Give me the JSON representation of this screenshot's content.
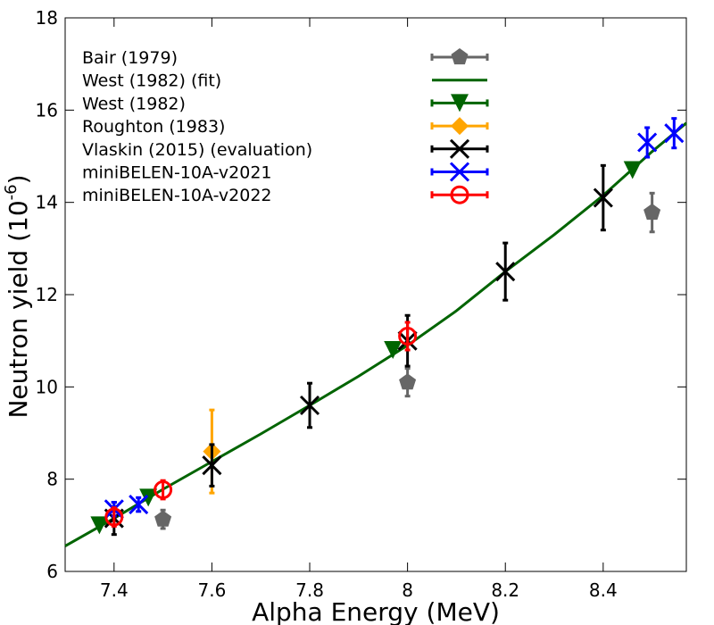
{
  "chart_data": {
    "type": "scatter",
    "xlabel": "Alpha Energy (MeV)",
    "ylabel": "Neutron yield (10",
    "ylabel_exp": "-6",
    "ylabel_close": ")",
    "xlim": [
      7.3,
      8.57
    ],
    "ylim": [
      6,
      18
    ],
    "xticks": [
      7.4,
      7.6,
      7.8,
      8,
      8.2,
      8.4
    ],
    "xtick_labels": [
      "7.4",
      "7.6",
      "7.8",
      "8",
      "8.2",
      "8.4"
    ],
    "yticks": [
      6,
      8,
      10,
      12,
      14,
      16,
      18
    ],
    "ytick_labels": [
      "6",
      "8",
      "10",
      "12",
      "14",
      "16",
      "18"
    ],
    "legend_position": "top-left",
    "series": [
      {
        "name": "Bair (1979)",
        "marker": "pentagon",
        "color": "#666666",
        "points": [
          {
            "x": 7.5,
            "y": 7.13,
            "err": 0.2
          },
          {
            "x": 8.0,
            "y": 10.1,
            "err": 0.3
          },
          {
            "x": 8.5,
            "y": 13.78,
            "err": 0.42
          }
        ]
      },
      {
        "name": "West (1982) (fit)",
        "marker": "line",
        "color": "#006400",
        "x": [
          7.3,
          7.35,
          7.4,
          7.5,
          7.6,
          7.7,
          7.8,
          7.9,
          8.0,
          8.1,
          8.2,
          8.3,
          8.4,
          8.5,
          8.57
        ],
        "y": [
          6.55,
          6.85,
          7.15,
          7.78,
          8.38,
          8.98,
          9.6,
          10.23,
          10.9,
          11.65,
          12.5,
          13.3,
          14.15,
          15.1,
          15.72
        ]
      },
      {
        "name": "West (1982)",
        "marker": "triangle-down",
        "color": "#006400",
        "points": [
          {
            "x": 7.37,
            "y": 7.0
          },
          {
            "x": 7.47,
            "y": 7.6
          },
          {
            "x": 7.97,
            "y": 10.8
          },
          {
            "x": 8.46,
            "y": 14.7
          }
        ]
      },
      {
        "name": "Roughton (1983)",
        "marker": "diamond",
        "color": "#FFA500",
        "points": [
          {
            "x": 7.6,
            "y": 8.6,
            "err": 0.9
          }
        ]
      },
      {
        "name": "Vlaskin (2015) (evaluation)",
        "marker": "x",
        "color": "#000000",
        "points": [
          {
            "x": 7.4,
            "y": 7.15,
            "err": 0.35
          },
          {
            "x": 7.6,
            "y": 8.3,
            "err": 0.45
          },
          {
            "x": 7.8,
            "y": 9.6,
            "err": 0.48
          },
          {
            "x": 8.0,
            "y": 11.0,
            "err": 0.55
          },
          {
            "x": 8.2,
            "y": 12.5,
            "err": 0.62
          },
          {
            "x": 8.4,
            "y": 14.1,
            "err": 0.7
          }
        ]
      },
      {
        "name": "miniBELEN-10A-v2021",
        "marker": "x",
        "color": "#0000FF",
        "points": [
          {
            "x": 7.4,
            "y": 7.35,
            "err": 0.15
          },
          {
            "x": 7.45,
            "y": 7.45,
            "err": 0.15
          },
          {
            "x": 8.49,
            "y": 15.3,
            "err": 0.32
          },
          {
            "x": 8.545,
            "y": 15.5,
            "err": 0.32
          }
        ]
      },
      {
        "name": "miniBELEN-10A-v2022",
        "marker": "circle",
        "color": "#FF0000",
        "points": [
          {
            "x": 7.4,
            "y": 7.18,
            "err": 0.2
          },
          {
            "x": 7.5,
            "y": 7.77,
            "err": 0.2
          },
          {
            "x": 8.0,
            "y": 11.1,
            "err": 0.3
          }
        ]
      }
    ]
  }
}
